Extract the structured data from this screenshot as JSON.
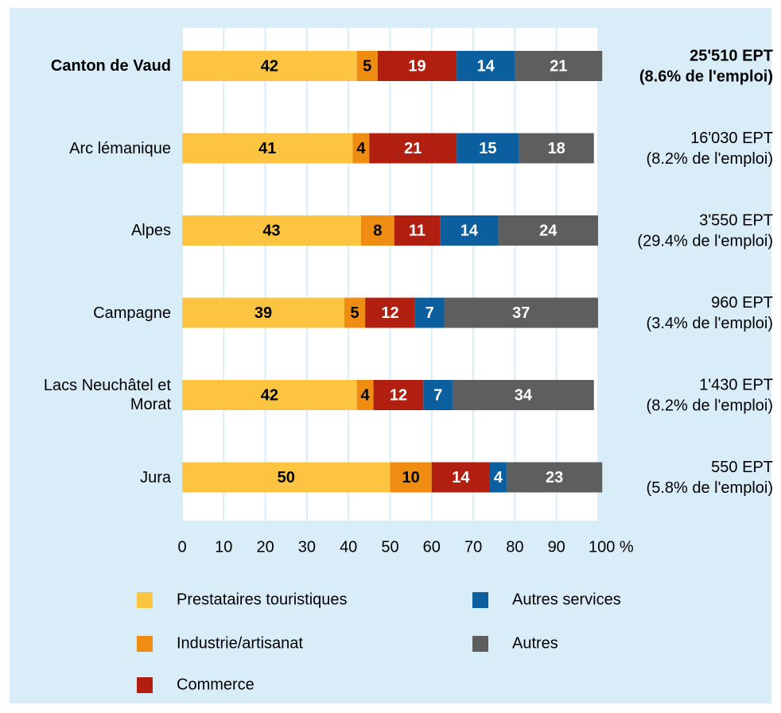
{
  "chart_data": {
    "type": "stacked-bar-horizontal",
    "categories": [
      "Canton de Vaud",
      "Arc lémanique",
      "Alpes",
      "Campagne",
      "Lacs Neuchâtel et Morat",
      "Jura"
    ],
    "series": [
      {
        "name": "Prestataires touristiques",
        "color": "#fcc441",
        "values": [
          42,
          41,
          43,
          39,
          42,
          50
        ]
      },
      {
        "name": "Industrie/artisanat",
        "color": "#ef8c12",
        "values": [
          5,
          4,
          8,
          5,
          4,
          10
        ]
      },
      {
        "name": "Commerce",
        "color": "#b11f10",
        "values": [
          19,
          21,
          11,
          12,
          12,
          14
        ]
      },
      {
        "name": "Autres services",
        "color": "#0b5f9f",
        "values": [
          14,
          15,
          14,
          7,
          7,
          4
        ]
      },
      {
        "name": "Autres",
        "color": "#5e5e5e",
        "values": [
          21,
          18,
          24,
          37,
          34,
          23
        ]
      }
    ],
    "right_labels": [
      [
        "25'510 EPT",
        "(8.6% de l'emploi)"
      ],
      [
        "16'030 EPT",
        "(8.2% de l'emploi)"
      ],
      [
        "3'550 EPT",
        "(29.4% de l'emploi)"
      ],
      [
        "960 EPT",
        "(3.4% de l'emploi)"
      ],
      [
        "1'430 EPT",
        "(8.2% de l'emploi)"
      ],
      [
        "550 EPT",
        "(5.8% de l'emploi)"
      ]
    ],
    "xlim": [
      0,
      100
    ],
    "xticks": [
      0,
      10,
      20,
      30,
      40,
      50,
      60,
      70,
      80,
      90,
      {
        "value": 100,
        "label": "100 %"
      }
    ],
    "grid": true
  }
}
